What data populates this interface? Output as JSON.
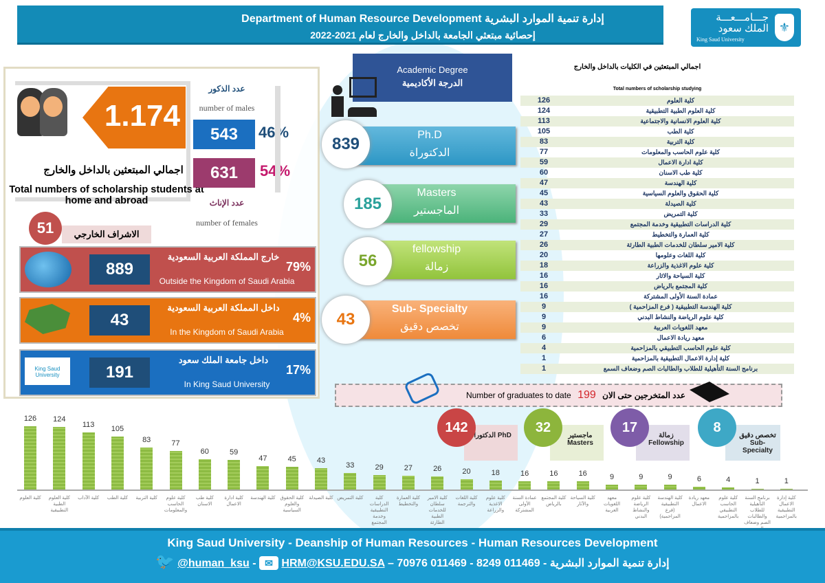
{
  "header": {
    "title": "Department of Human Resource Development  إدارة تنمية الموارد البشرية",
    "subtitle": "إحصائية مبتعثي الجامعة بالداخل والخارج لعام 2021-2022"
  },
  "logo": {
    "arabic": "جـــامـــعـــة الملك سعود",
    "english": "King Saud University"
  },
  "totals": {
    "total": "1.174",
    "title_ar": "اجمالي المبتعثين بالداخل والخارج",
    "title_en": "Total numbers of scholarship students at home and abroad",
    "males_label_ar": "عدد الذكور",
    "males_label_en": "number of males",
    "males": "543",
    "males_pct": "46%",
    "females_label_ar": "عدد الإناث",
    "females_label_en": "number of females",
    "females": "631",
    "females_pct": "54%",
    "external_supervision": "51",
    "external_supervision_label": "الاشراف الخارجي"
  },
  "locations": [
    {
      "num": "889",
      "ar": "خارج المملكة العربية السعودية",
      "en": "Outside the Kingdom of Saudi Arabia",
      "pct": "79%"
    },
    {
      "num": "43",
      "ar": "داخل المملكة العربية السعودية",
      "en": "In the Kingdom of Saudi Arabia",
      "pct": "4%"
    },
    {
      "num": "191",
      "ar": "داخل جامعة الملك سعود",
      "en": "In King Saud University",
      "pct": "17%"
    }
  ],
  "degree": {
    "title_en": "Academic Degree",
    "title_ar": "الدرجة الأكاديمية",
    "items": [
      {
        "count": "839",
        "en": "Ph.D",
        "ar": "الدكتوراة"
      },
      {
        "count": "185",
        "en": "Masters",
        "ar": "الماجستير"
      },
      {
        "count": "56",
        "en": "fellowship",
        "ar": "زمالة"
      },
      {
        "count": "43",
        "en": "Sub- Specialty",
        "ar": "تخصص دقيق"
      }
    ]
  },
  "table": {
    "title_ar": "اجمالي المبتعثين في الكليات بالداخل والخارج",
    "title_en": "Total numbers of scholarship studying",
    "rows": [
      {
        "v": "126",
        "n": "كلية العلوم"
      },
      {
        "v": "124",
        "n": "كلية العلوم الطبية التطبيقية"
      },
      {
        "v": "113",
        "n": "كلية العلوم الانسانية والاجتماعية"
      },
      {
        "v": "105",
        "n": "كلية الطب"
      },
      {
        "v": "83",
        "n": "كلية التربية"
      },
      {
        "v": "77",
        "n": "كلية علوم الحاسب والمعلومات"
      },
      {
        "v": "59",
        "n": "كلية ادارة الاعمال"
      },
      {
        "v": "60",
        "n": "كلية طب الاسنان"
      },
      {
        "v": "47",
        "n": "كلية الهندسة"
      },
      {
        "v": "45",
        "n": "كلية الحقوق والعلوم السياسية"
      },
      {
        "v": "43",
        "n": "كلية الصيدلة"
      },
      {
        "v": "33",
        "n": "كلية التمريض"
      },
      {
        "v": "29",
        "n": "كلية الدراسات التطبيقية وخدمة المجتمع"
      },
      {
        "v": "27",
        "n": "كلية العمارة والتخطيط"
      },
      {
        "v": "26",
        "n": "كلية الامير سلطان للخدمات الطبية الطارئة"
      },
      {
        "v": "20",
        "n": "كلية اللغات وعلومها"
      },
      {
        "v": "18",
        "n": "كلية علوم الاغذية والزراعة"
      },
      {
        "v": "16",
        "n": "كلية السياحة والاثار"
      },
      {
        "v": "16",
        "n": "كلية المجتمع بالرياض"
      },
      {
        "v": "16",
        "n": "عمادة السنة الأولى المشتركة"
      },
      {
        "v": "9",
        "n": "كلية الهندسة التطبيقية ( فرع المزاحمية )"
      },
      {
        "v": "9",
        "n": "كلية علوم الرياضة والنشاط البدني"
      },
      {
        "v": "9",
        "n": "معهد اللغويات العربية"
      },
      {
        "v": "6",
        "n": "معهد ريادة الاعمال"
      },
      {
        "v": "4",
        "n": "كلية علوم الحاسب التطبيقي بالمزاحمية"
      },
      {
        "v": "1",
        "n": "كلية إدارة الاعمال التطبيقية بالمزاحمية"
      },
      {
        "v": "1",
        "n": "برنامج السنة التأهيلية للطلاب والطالبات الصم وضعاف السمع"
      }
    ]
  },
  "graduates": {
    "label_en": "Number of graduates to date",
    "count": "199",
    "label_ar": "عدد المتخرجين حتى الان",
    "items": [
      {
        "count": "142",
        "label": "الدكتوراه PhD",
        "color": "#c94545"
      },
      {
        "count": "32",
        "label": "ماجستير Masters",
        "color": "#8db53c"
      },
      {
        "count": "17",
        "label": "زمالة Fellowship",
        "color": "#7e5ca8"
      },
      {
        "count": "8",
        "label": "تخصص دقيق Sub-Specialty",
        "color": "#3ea8c6"
      }
    ]
  },
  "chart_data": {
    "type": "bar",
    "title": "",
    "xlabel": "",
    "ylabel": "",
    "ylim": [
      0,
      126
    ],
    "categories": [
      "كلية العلوم",
      "كلية العلوم الطبية التطبيقية",
      "كلية الآداب",
      "كلية الطب",
      "كلية التربية",
      "كلية علوم الحاسب والمعلومات",
      "كلية طب الاسنان",
      "كلية ادارة الاعمال",
      "كلية الهندسة",
      "كلية الحقوق والعلوم السياسية",
      "كلية الصيدلة",
      "كلية التمريض",
      "كلية الدراسات التطبيقية وخدمة المجتمع",
      "كلية العمارة والتخطيط",
      "كلية الامير سلطان للخدمات الطبية الطارئة",
      "كلية اللغات والترجمة",
      "كلية علوم الاغذية والزراعة",
      "عمادة السنة الأولى المشتركة",
      "كلية المجتمع بالرياض",
      "كلية السياحة والآثار",
      "معهد اللغويات العربية",
      "كلية علوم الرياضة والنشاط البدني",
      "كلية الهندسة التطبيقية (فرع المزاحمية)",
      "معهد ريادة الاعمال",
      "كلية علوم الحاسب التطبيقي بالمزاحمية",
      "برنامج السنة التأهيلية للطلاب والطالبات الصم وضعاف السمع",
      "كلية إدارة الاعمال التطبيقية بالمزاحمية"
    ],
    "values": [
      126,
      124,
      113,
      105,
      83,
      77,
      60,
      59,
      47,
      45,
      43,
      33,
      29,
      27,
      26,
      20,
      18,
      16,
      16,
      16,
      9,
      9,
      9,
      6,
      4,
      1,
      1
    ]
  },
  "footer": {
    "line1": "King Saud University - Deanship of Human Resources - Human Resources Development",
    "twitter": "@human_ksu",
    "email": "HRM@KSU.EDU.SA",
    "dept": "إدارة تنمية الموارد البشرية",
    "phones": "011469 8249 - 011469 70976"
  },
  "colors": {
    "header": "#138bb7",
    "orange": "#e87511",
    "males": "#1b6fc0",
    "females": "#9c3b6d"
  }
}
